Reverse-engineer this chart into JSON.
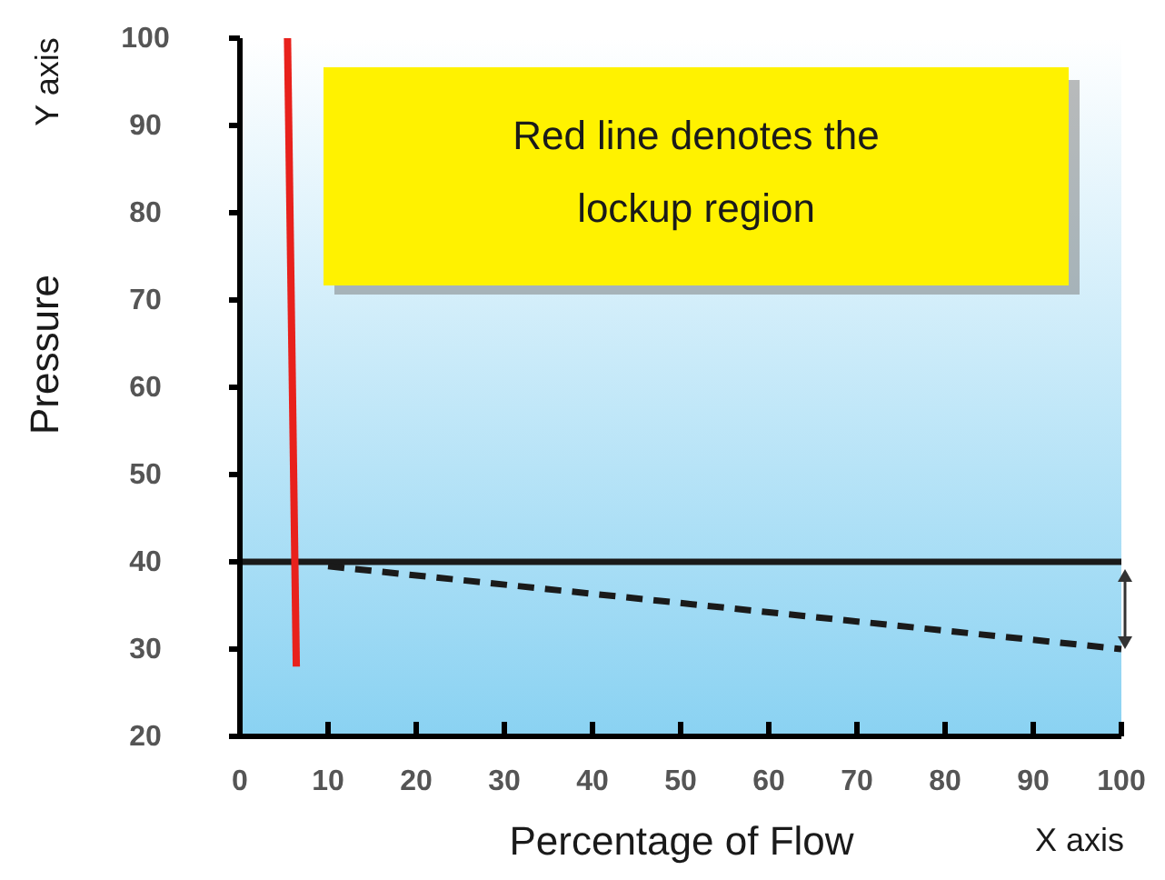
{
  "chart_data": {
    "type": "line",
    "ylabel": "Pressure",
    "xlabel": "Percentage of Flow",
    "xlim": [
      0,
      100
    ],
    "xticks": [
      0,
      10,
      20,
      30,
      40,
      50,
      60,
      70,
      80,
      90,
      100
    ],
    "ylim": [
      20,
      100
    ],
    "yticks": [
      20,
      30,
      40,
      50,
      60,
      70,
      80,
      90,
      100
    ],
    "grid": false,
    "series": [
      {
        "color": "#1a1a1a",
        "x": [
          0,
          100
        ],
        "values": [
          40,
          40
        ],
        "line_style": "solid"
      },
      {
        "color": "#1a1a1a",
        "x": [
          10,
          100
        ],
        "values": [
          39.5,
          30
        ],
        "line_style": "dashed"
      },
      {
        "color": "#e8211c",
        "x": [
          5.4,
          6.4
        ],
        "values": [
          100,
          28
        ],
        "line_style": "solid"
      }
    ],
    "annotations": [
      "Red line denotes the lockup region",
      "Y axis",
      "X axis"
    ]
  }
}
